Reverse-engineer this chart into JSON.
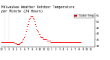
{
  "title": "Milwaukee Weather Outdoor Temperature\nper Minute (24 Hours)",
  "line_color": "red",
  "background_color": "white",
  "legend_label": "Outdoor Temp",
  "title_fontsize": 3.5,
  "tick_fontsize": 2.8,
  "figsize": [
    1.6,
    0.87
  ],
  "dpi": 100,
  "ylim": [
    29,
    57
  ],
  "xlim": [
    0,
    1440
  ],
  "y_ticks": [
    30,
    35,
    40,
    45,
    50,
    55
  ],
  "x_tick_positions": [
    0,
    60,
    120,
    180,
    240,
    300,
    360,
    420,
    480,
    540,
    600,
    660,
    720,
    780,
    840,
    900,
    960,
    1020,
    1080,
    1140,
    1200,
    1260,
    1320,
    1380
  ],
  "x_tick_labels": [
    "12",
    "1",
    "2",
    "3",
    "4",
    "5",
    "6",
    "7",
    "8",
    "9",
    "10",
    "11",
    "12",
    "1",
    "2",
    "3",
    "4",
    "5",
    "6",
    "7",
    "8",
    "9",
    "10",
    "11"
  ],
  "vline_positions": [
    60,
    120
  ],
  "temperatures": [
    33,
    33,
    33,
    33,
    33,
    33,
    33,
    33,
    33,
    33,
    33,
    33,
    33,
    33,
    33,
    33,
    33,
    33,
    33,
    33,
    33,
    33,
    33,
    33,
    33,
    33,
    33,
    33,
    33,
    33,
    33,
    33,
    33,
    33,
    33,
    33,
    33,
    33,
    33,
    33,
    33,
    33,
    33,
    33,
    33,
    33,
    33,
    33,
    33,
    33,
    33,
    33,
    33,
    33,
    33,
    33,
    33,
    33,
    33,
    33,
    33,
    33,
    33,
    33,
    33,
    33,
    33,
    33,
    33,
    33,
    33,
    33,
    33,
    33,
    33,
    33,
    33,
    33,
    33,
    33,
    33,
    33,
    33,
    33,
    33,
    33,
    33,
    33,
    33,
    33,
    33,
    33,
    33,
    33,
    33,
    33,
    33,
    33,
    33,
    33,
    33,
    33,
    33,
    33,
    33,
    33,
    33,
    33,
    33,
    33,
    33,
    33,
    33,
    33,
    33,
    33,
    33,
    33,
    33,
    33,
    33,
    33,
    33,
    33,
    33,
    33,
    33,
    33,
    33,
    33,
    33,
    33,
    33,
    33,
    33,
    33,
    33,
    33,
    33,
    33,
    33,
    33,
    33,
    33,
    33,
    33,
    33,
    33,
    33,
    33,
    33,
    33,
    33,
    33,
    33,
    33,
    33,
    33,
    33,
    33,
    33,
    33,
    33,
    33,
    33,
    33,
    33,
    33,
    33,
    33,
    33,
    33,
    33,
    33,
    33,
    33,
    33,
    33,
    33,
    33,
    33,
    33,
    33,
    33,
    33,
    33,
    33,
    33,
    33,
    33,
    33,
    33,
    33,
    33,
    33,
    33,
    33,
    33,
    33,
    33,
    32,
    32,
    32,
    32,
    32,
    32,
    32,
    32,
    32,
    32,
    32,
    32,
    32,
    32,
    32,
    32,
    32,
    32,
    32,
    32,
    32,
    32,
    32,
    32,
    32,
    32,
    32,
    32,
    32,
    32,
    32,
    32,
    32,
    32,
    32,
    32,
    32,
    32,
    32,
    32,
    31,
    31,
    31,
    31,
    31,
    31,
    31,
    31,
    31,
    31,
    31,
    31,
    31,
    31,
    31,
    31,
    31,
    31,
    31,
    31,
    31,
    31,
    31,
    31,
    31,
    31,
    31,
    31,
    31,
    31,
    31,
    31,
    31,
    31,
    31,
    31,
    31,
    31,
    31,
    31,
    32,
    32,
    32,
    32,
    32,
    32,
    32,
    32,
    32,
    32,
    32,
    32,
    32,
    32,
    32,
    32,
    32,
    32,
    32,
    32,
    33,
    33,
    33,
    33,
    33,
    33,
    33,
    33,
    33,
    33,
    33,
    33,
    33,
    33,
    33,
    33,
    33,
    33,
    33,
    33,
    34,
    34,
    34,
    34,
    34,
    34,
    34,
    34,
    34,
    34,
    35,
    35,
    35,
    35,
    35,
    35,
    35,
    35,
    35,
    35,
    36,
    36,
    36,
    36,
    36,
    36,
    36,
    36,
    36,
    36,
    37,
    37,
    37,
    37,
    37,
    37,
    37,
    37,
    37,
    37,
    38,
    38,
    38,
    38,
    38,
    38,
    38,
    38,
    38,
    38,
    40,
    40,
    40,
    40,
    40,
    40,
    40,
    40,
    40,
    40,
    42,
    42,
    42,
    42,
    42,
    42,
    42,
    42,
    42,
    42,
    44,
    44,
    44,
    44,
    44,
    44,
    44,
    44,
    44,
    44,
    46,
    46,
    46,
    46,
    46,
    46,
    46,
    46,
    46,
    46,
    48,
    48,
    48,
    48,
    48,
    48,
    48,
    48,
    48,
    48,
    50,
    50,
    50,
    50,
    50,
    50,
    50,
    50,
    50,
    50,
    52,
    52,
    52,
    52,
    52,
    52,
    52,
    52,
    52,
    52,
    53,
    53,
    53,
    53,
    53,
    53,
    53,
    53,
    53,
    53,
    54,
    54,
    54,
    54,
    54,
    54,
    54,
    54,
    54,
    54,
    55,
    55,
    55,
    55,
    55,
    55,
    55,
    55,
    55,
    55,
    55,
    55,
    55,
    55,
    55,
    55,
    55,
    55,
    55,
    55,
    54,
    54,
    54,
    54,
    54,
    54,
    54,
    54,
    54,
    54,
    53,
    53,
    53,
    53,
    53,
    53,
    53,
    53,
    53,
    53,
    52,
    52,
    52,
    52,
    52,
    52,
    52,
    52,
    52,
    52,
    50,
    50,
    50,
    50,
    50,
    50,
    50,
    50,
    50,
    50,
    48,
    48,
    48,
    48,
    48,
    48,
    48,
    48,
    48,
    48,
    46,
    46,
    46,
    46,
    46,
    46,
    46,
    46,
    46,
    46,
    44,
    44,
    44,
    44,
    44,
    44,
    44,
    44,
    44,
    44,
    43,
    43,
    43,
    43,
    43,
    43,
    43,
    43,
    43,
    43,
    42,
    42,
    42,
    42,
    42,
    42,
    42,
    42,
    42,
    42,
    41,
    41,
    41,
    41,
    41,
    41,
    41,
    41,
    41,
    41,
    40,
    40,
    40,
    40,
    40,
    40,
    40,
    40,
    40,
    40,
    39,
    39,
    39,
    39,
    39,
    39,
    39,
    39,
    39,
    39,
    38,
    38,
    38,
    38,
    38,
    38,
    38,
    38,
    38,
    38,
    37,
    37,
    37,
    37,
    37,
    37,
    37,
    37,
    37,
    37,
    37,
    37,
    37,
    37,
    37,
    37,
    37,
    37,
    37,
    37,
    37,
    37,
    37,
    37,
    37,
    37,
    37,
    37,
    37,
    37,
    36,
    36,
    36,
    36,
    36,
    36,
    36,
    36,
    36,
    36,
    35,
    35,
    35,
    35,
    35,
    35,
    35,
    35,
    35,
    35,
    35,
    35,
    35,
    35,
    35,
    35,
    35,
    35,
    35,
    35,
    35,
    35,
    35,
    35,
    35,
    35,
    35,
    35,
    35,
    35,
    35,
    35,
    35,
    35,
    35,
    35,
    35,
    35,
    35,
    35,
    35,
    35,
    35,
    35,
    35,
    35,
    35,
    35,
    35,
    35,
    34,
    34,
    34,
    34,
    34,
    34,
    34,
    34,
    34,
    34,
    34,
    34,
    34,
    34,
    34,
    34,
    34,
    34,
    34,
    34,
    34,
    34,
    34,
    34,
    34,
    34,
    34,
    34,
    34,
    34,
    34,
    34,
    34,
    34,
    34,
    34,
    34,
    34,
    34,
    34,
    34,
    34,
    34,
    34,
    34,
    34,
    34,
    34,
    34,
    34,
    34,
    34,
    34,
    34,
    34,
    34,
    34,
    34,
    34,
    34,
    33,
    33,
    33,
    33,
    33,
    33,
    33,
    33,
    33,
    33,
    33,
    33,
    33,
    33,
    33,
    33,
    33,
    33,
    33,
    33,
    33,
    33,
    33,
    33,
    33,
    33,
    33,
    33,
    33,
    33,
    33,
    33,
    33,
    33,
    33,
    33,
    33,
    33,
    33,
    33,
    33,
    33,
    33,
    33,
    33,
    33,
    33,
    33,
    33,
    33,
    33,
    33,
    33,
    33,
    33,
    33,
    33,
    33,
    33,
    33,
    33,
    33,
    33,
    33,
    33,
    33,
    33,
    33,
    33,
    33,
    33,
    33,
    33,
    33,
    33,
    33,
    33,
    33,
    33,
    33,
    33,
    33,
    33,
    33,
    33,
    33,
    33,
    33,
    33,
    33,
    33,
    33,
    33,
    33,
    33,
    33,
    33,
    33,
    33,
    33,
    33,
    33,
    33,
    33,
    33,
    33,
    33,
    33,
    33,
    33,
    33,
    33,
    33,
    33,
    33,
    33,
    33,
    33,
    33,
    33,
    33,
    33,
    33,
    33,
    33,
    33,
    33,
    33,
    33,
    33,
    33,
    33,
    33,
    33,
    33,
    33,
    33,
    33,
    33,
    33,
    33,
    33,
    33,
    33,
    33,
    33,
    33,
    33,
    33,
    33,
    33,
    33,
    33,
    33,
    33,
    33,
    33,
    33,
    33,
    33,
    33,
    33,
    33,
    33,
    33,
    33,
    33,
    33,
    33,
    33,
    33,
    33,
    33,
    33,
    33,
    33,
    33,
    33,
    33,
    33,
    33,
    33,
    33,
    33,
    33,
    33,
    33,
    33,
    33,
    33,
    33,
    33,
    33,
    33,
    33,
    33,
    33,
    33,
    33,
    33,
    33,
    33,
    33,
    33,
    33,
    33,
    33,
    33,
    33,
    33,
    33,
    33,
    33,
    33,
    33,
    33,
    33,
    33,
    33,
    33,
    33,
    33,
    33,
    33,
    33,
    33,
    33,
    33,
    33,
    33,
    33,
    33,
    33,
    33,
    33,
    33,
    33,
    33,
    33,
    33,
    33,
    33,
    33,
    33,
    33,
    33,
    33,
    33,
    33,
    33,
    33,
    33,
    33,
    33,
    33,
    33,
    33,
    33,
    33,
    33,
    33,
    33,
    33,
    33,
    33,
    33,
    33,
    33,
    33,
    33,
    33,
    33,
    33,
    33,
    33,
    33,
    33,
    33,
    33,
    33,
    33,
    33,
    33,
    33,
    33,
    33,
    33,
    33,
    33,
    33,
    33,
    33,
    33,
    33,
    33,
    33,
    33,
    33,
    33,
    33,
    33,
    33,
    33,
    33,
    33,
    33,
    33,
    33,
    33,
    33,
    33,
    33,
    33,
    33,
    33,
    33,
    33,
    33,
    33,
    33,
    33,
    33,
    33,
    33,
    33,
    33,
    33,
    33,
    33,
    33,
    33,
    33,
    33,
    33,
    33,
    33,
    33,
    33,
    33,
    33,
    33,
    33,
    33,
    33,
    33,
    33,
    33,
    33,
    33,
    33,
    33,
    33,
    33,
    33,
    33,
    33,
    33,
    33,
    33,
    33,
    33,
    33,
    33,
    33,
    33,
    33,
    33,
    33,
    33,
    33,
    33,
    33,
    33,
    33,
    33,
    33,
    33,
    33,
    33,
    33,
    33,
    33,
    33,
    33,
    33,
    33,
    33,
    33,
    33,
    33,
    33,
    33,
    33,
    33,
    33,
    33,
    33,
    33,
    33,
    33,
    33,
    33,
    33,
    33,
    33,
    33,
    33,
    33,
    33,
    33,
    33,
    33,
    33,
    33,
    33,
    33,
    33,
    33,
    33,
    33,
    33,
    33,
    33,
    33,
    33,
    33,
    33,
    33,
    33,
    33,
    33,
    33,
    33,
    33,
    33,
    33,
    33,
    33,
    33,
    33,
    33,
    33,
    33,
    33,
    33,
    33,
    33,
    33,
    33,
    33,
    33,
    33,
    33,
    33,
    33,
    33,
    33,
    33,
    33,
    33,
    33,
    33,
    33,
    33,
    33,
    33,
    33,
    33,
    33,
    33
  ]
}
